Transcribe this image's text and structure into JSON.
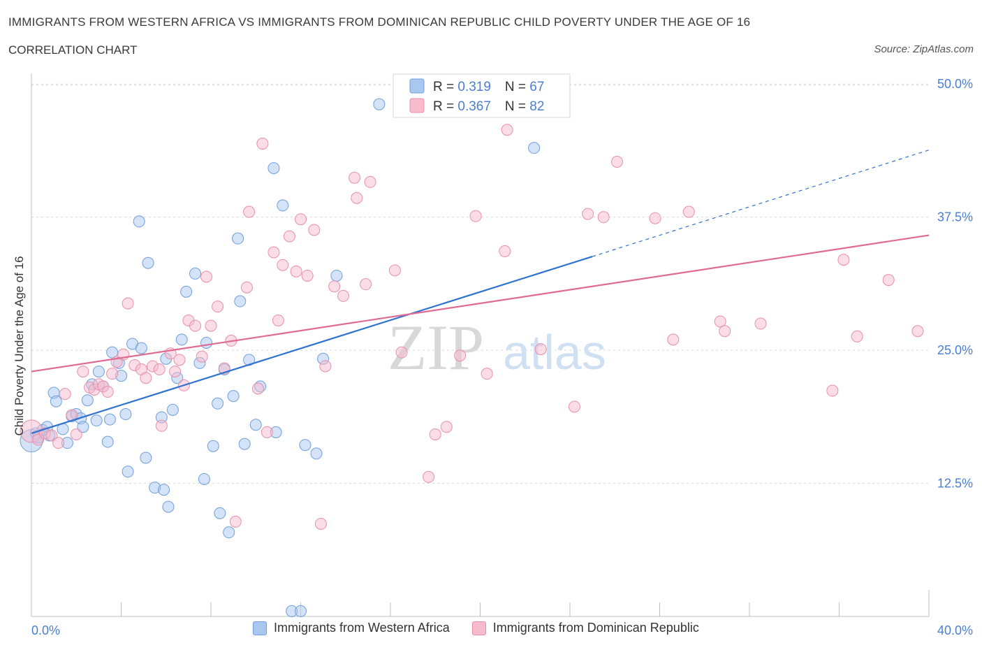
{
  "header": {
    "title": "IMMIGRANTS FROM WESTERN AFRICA VS IMMIGRANTS FROM DOMINICAN REPUBLIC CHILD POVERTY UNDER THE AGE OF 16",
    "subtitle": "CORRELATION CHART",
    "source": "Source: ZipAtlas.com"
  },
  "colors": {
    "blue_fill": "#a9c8f0",
    "blue_stroke": "#6f9ede",
    "blue_line": "#2f72cf",
    "pink_fill": "#f6bccd",
    "pink_stroke": "#e98fab",
    "pink_line": "#e06a93",
    "axis_text": "#4a7fcf"
  },
  "watermark": {
    "zip": "ZIP",
    "atlas": "atlas"
  },
  "chart_data": {
    "type": "scatter",
    "title": "IMMIGRANTS FROM WESTERN AFRICA VS IMMIGRANTS FROM DOMINICAN REPUBLIC CHILD POVERTY UNDER THE AGE OF 16",
    "xlabel": "",
    "ylabel": "Child Poverty Under the Age of 16",
    "xlim": [
      0,
      40
    ],
    "ylim": [
      0,
      51
    ],
    "x_tick_labels": [
      "0.0%",
      "40.0%"
    ],
    "y_ticks": [
      12.5,
      25.0,
      37.5,
      50.0
    ],
    "y_tick_labels": [
      "12.5%",
      "25.0%",
      "37.5%",
      "50.0%"
    ],
    "grid": true,
    "legend_position": "top-center",
    "series": [
      {
        "name": "Immigrants from Western Africa",
        "color": "blue",
        "R": "0.319",
        "N": "67",
        "trend": {
          "x0": 0,
          "y0": 17.2,
          "x1": 25,
          "y1": 33.8,
          "dash_to_x": 40,
          "dash_to_y": 43.8
        },
        "points": [
          [
            0.0,
            16.5
          ],
          [
            0.2,
            17.2
          ],
          [
            0.3,
            16.8
          ],
          [
            0.5,
            17.5
          ],
          [
            0.7,
            17.8
          ],
          [
            0.8,
            17.0
          ],
          [
            1.0,
            21.0
          ],
          [
            1.1,
            20.2
          ],
          [
            1.4,
            17.6
          ],
          [
            1.6,
            16.3
          ],
          [
            1.8,
            18.8
          ],
          [
            2.0,
            19.0
          ],
          [
            2.2,
            18.6
          ],
          [
            2.3,
            17.8
          ],
          [
            2.5,
            20.3
          ],
          [
            2.7,
            21.8
          ],
          [
            2.9,
            18.4
          ],
          [
            3.0,
            23.0
          ],
          [
            3.2,
            21.6
          ],
          [
            3.4,
            16.4
          ],
          [
            3.5,
            18.5
          ],
          [
            3.6,
            24.8
          ],
          [
            3.9,
            23.8
          ],
          [
            4.0,
            22.6
          ],
          [
            4.2,
            19.0
          ],
          [
            4.3,
            13.6
          ],
          [
            4.5,
            25.6
          ],
          [
            4.8,
            37.1
          ],
          [
            4.9,
            25.2
          ],
          [
            5.1,
            14.9
          ],
          [
            5.2,
            33.2
          ],
          [
            5.5,
            12.1
          ],
          [
            5.8,
            18.7
          ],
          [
            5.9,
            11.9
          ],
          [
            6.0,
            24.2
          ],
          [
            6.1,
            10.3
          ],
          [
            6.3,
            19.4
          ],
          [
            6.5,
            22.4
          ],
          [
            6.7,
            26.0
          ],
          [
            6.9,
            30.5
          ],
          [
            7.3,
            32.2
          ],
          [
            7.5,
            23.8
          ],
          [
            7.7,
            12.9
          ],
          [
            7.8,
            25.7
          ],
          [
            8.1,
            16.0
          ],
          [
            8.3,
            20.0
          ],
          [
            8.4,
            9.7
          ],
          [
            8.6,
            23.2
          ],
          [
            8.8,
            7.9
          ],
          [
            9.0,
            20.7
          ],
          [
            9.2,
            35.5
          ],
          [
            9.3,
            29.6
          ],
          [
            9.5,
            16.2
          ],
          [
            9.7,
            24.1
          ],
          [
            10.0,
            18.0
          ],
          [
            10.2,
            21.6
          ],
          [
            10.8,
            42.1
          ],
          [
            10.9,
            17.3
          ],
          [
            11.2,
            38.6
          ],
          [
            11.6,
            0.5
          ],
          [
            12.0,
            0.5
          ],
          [
            12.2,
            16.1
          ],
          [
            12.7,
            15.3
          ],
          [
            13.0,
            24.2
          ],
          [
            13.6,
            32.0
          ],
          [
            15.5,
            48.1
          ],
          [
            22.4,
            44.0
          ]
        ]
      },
      {
        "name": "Immigrants from Dominican Republic",
        "color": "pink",
        "R": "0.367",
        "N": "82",
        "trend": {
          "x0": 0,
          "y0": 23.0,
          "x1": 40,
          "y1": 35.8
        },
        "points": [
          [
            0.0,
            17.4
          ],
          [
            0.3,
            16.6
          ],
          [
            0.6,
            17.2
          ],
          [
            0.9,
            17.0
          ],
          [
            1.2,
            16.3
          ],
          [
            1.5,
            20.9
          ],
          [
            1.8,
            18.9
          ],
          [
            2.0,
            17.1
          ],
          [
            2.3,
            23.0
          ],
          [
            2.6,
            21.5
          ],
          [
            2.8,
            21.3
          ],
          [
            3.0,
            21.8
          ],
          [
            3.2,
            21.6
          ],
          [
            3.4,
            21.1
          ],
          [
            3.6,
            22.8
          ],
          [
            3.8,
            23.9
          ],
          [
            4.1,
            24.6
          ],
          [
            4.3,
            29.4
          ],
          [
            4.6,
            23.6
          ],
          [
            4.9,
            23.2
          ],
          [
            5.1,
            22.4
          ],
          [
            5.4,
            23.5
          ],
          [
            5.7,
            23.2
          ],
          [
            5.8,
            17.9
          ],
          [
            6.2,
            24.7
          ],
          [
            6.4,
            23.0
          ],
          [
            6.6,
            24.1
          ],
          [
            6.8,
            21.7
          ],
          [
            7.0,
            27.8
          ],
          [
            7.3,
            27.3
          ],
          [
            7.6,
            24.4
          ],
          [
            7.8,
            31.9
          ],
          [
            8.0,
            27.3
          ],
          [
            8.3,
            29.1
          ],
          [
            8.6,
            23.3
          ],
          [
            8.9,
            25.9
          ],
          [
            9.1,
            8.9
          ],
          [
            9.6,
            30.9
          ],
          [
            9.7,
            38.0
          ],
          [
            10.1,
            21.4
          ],
          [
            10.3,
            44.4
          ],
          [
            10.5,
            17.3
          ],
          [
            10.8,
            34.2
          ],
          [
            11.0,
            27.8
          ],
          [
            11.2,
            33.0
          ],
          [
            11.5,
            35.7
          ],
          [
            11.8,
            32.4
          ],
          [
            12.0,
            37.3
          ],
          [
            12.3,
            32.0
          ],
          [
            12.6,
            36.3
          ],
          [
            12.9,
            8.7
          ],
          [
            13.1,
            23.5
          ],
          [
            13.5,
            31.0
          ],
          [
            13.9,
            30.1
          ],
          [
            14.4,
            41.2
          ],
          [
            14.5,
            39.3
          ],
          [
            14.9,
            31.2
          ],
          [
            15.1,
            40.8
          ],
          [
            16.2,
            32.5
          ],
          [
            16.5,
            24.8
          ],
          [
            17.7,
            13.1
          ],
          [
            18.0,
            17.1
          ],
          [
            18.5,
            17.8
          ],
          [
            19.1,
            24.5
          ],
          [
            19.8,
            37.6
          ],
          [
            20.3,
            22.8
          ],
          [
            21.1,
            34.3
          ],
          [
            21.2,
            45.7
          ],
          [
            22.7,
            25.1
          ],
          [
            24.2,
            19.7
          ],
          [
            24.8,
            37.8
          ],
          [
            25.5,
            37.5
          ],
          [
            26.1,
            42.7
          ],
          [
            27.8,
            37.4
          ],
          [
            28.6,
            26.0
          ],
          [
            29.3,
            38.0
          ],
          [
            30.7,
            27.7
          ],
          [
            30.9,
            26.8
          ],
          [
            32.5,
            27.5
          ],
          [
            35.7,
            21.2
          ],
          [
            36.2,
            33.5
          ],
          [
            36.8,
            26.3
          ],
          [
            38.2,
            31.6
          ],
          [
            39.5,
            26.8
          ]
        ]
      }
    ]
  }
}
